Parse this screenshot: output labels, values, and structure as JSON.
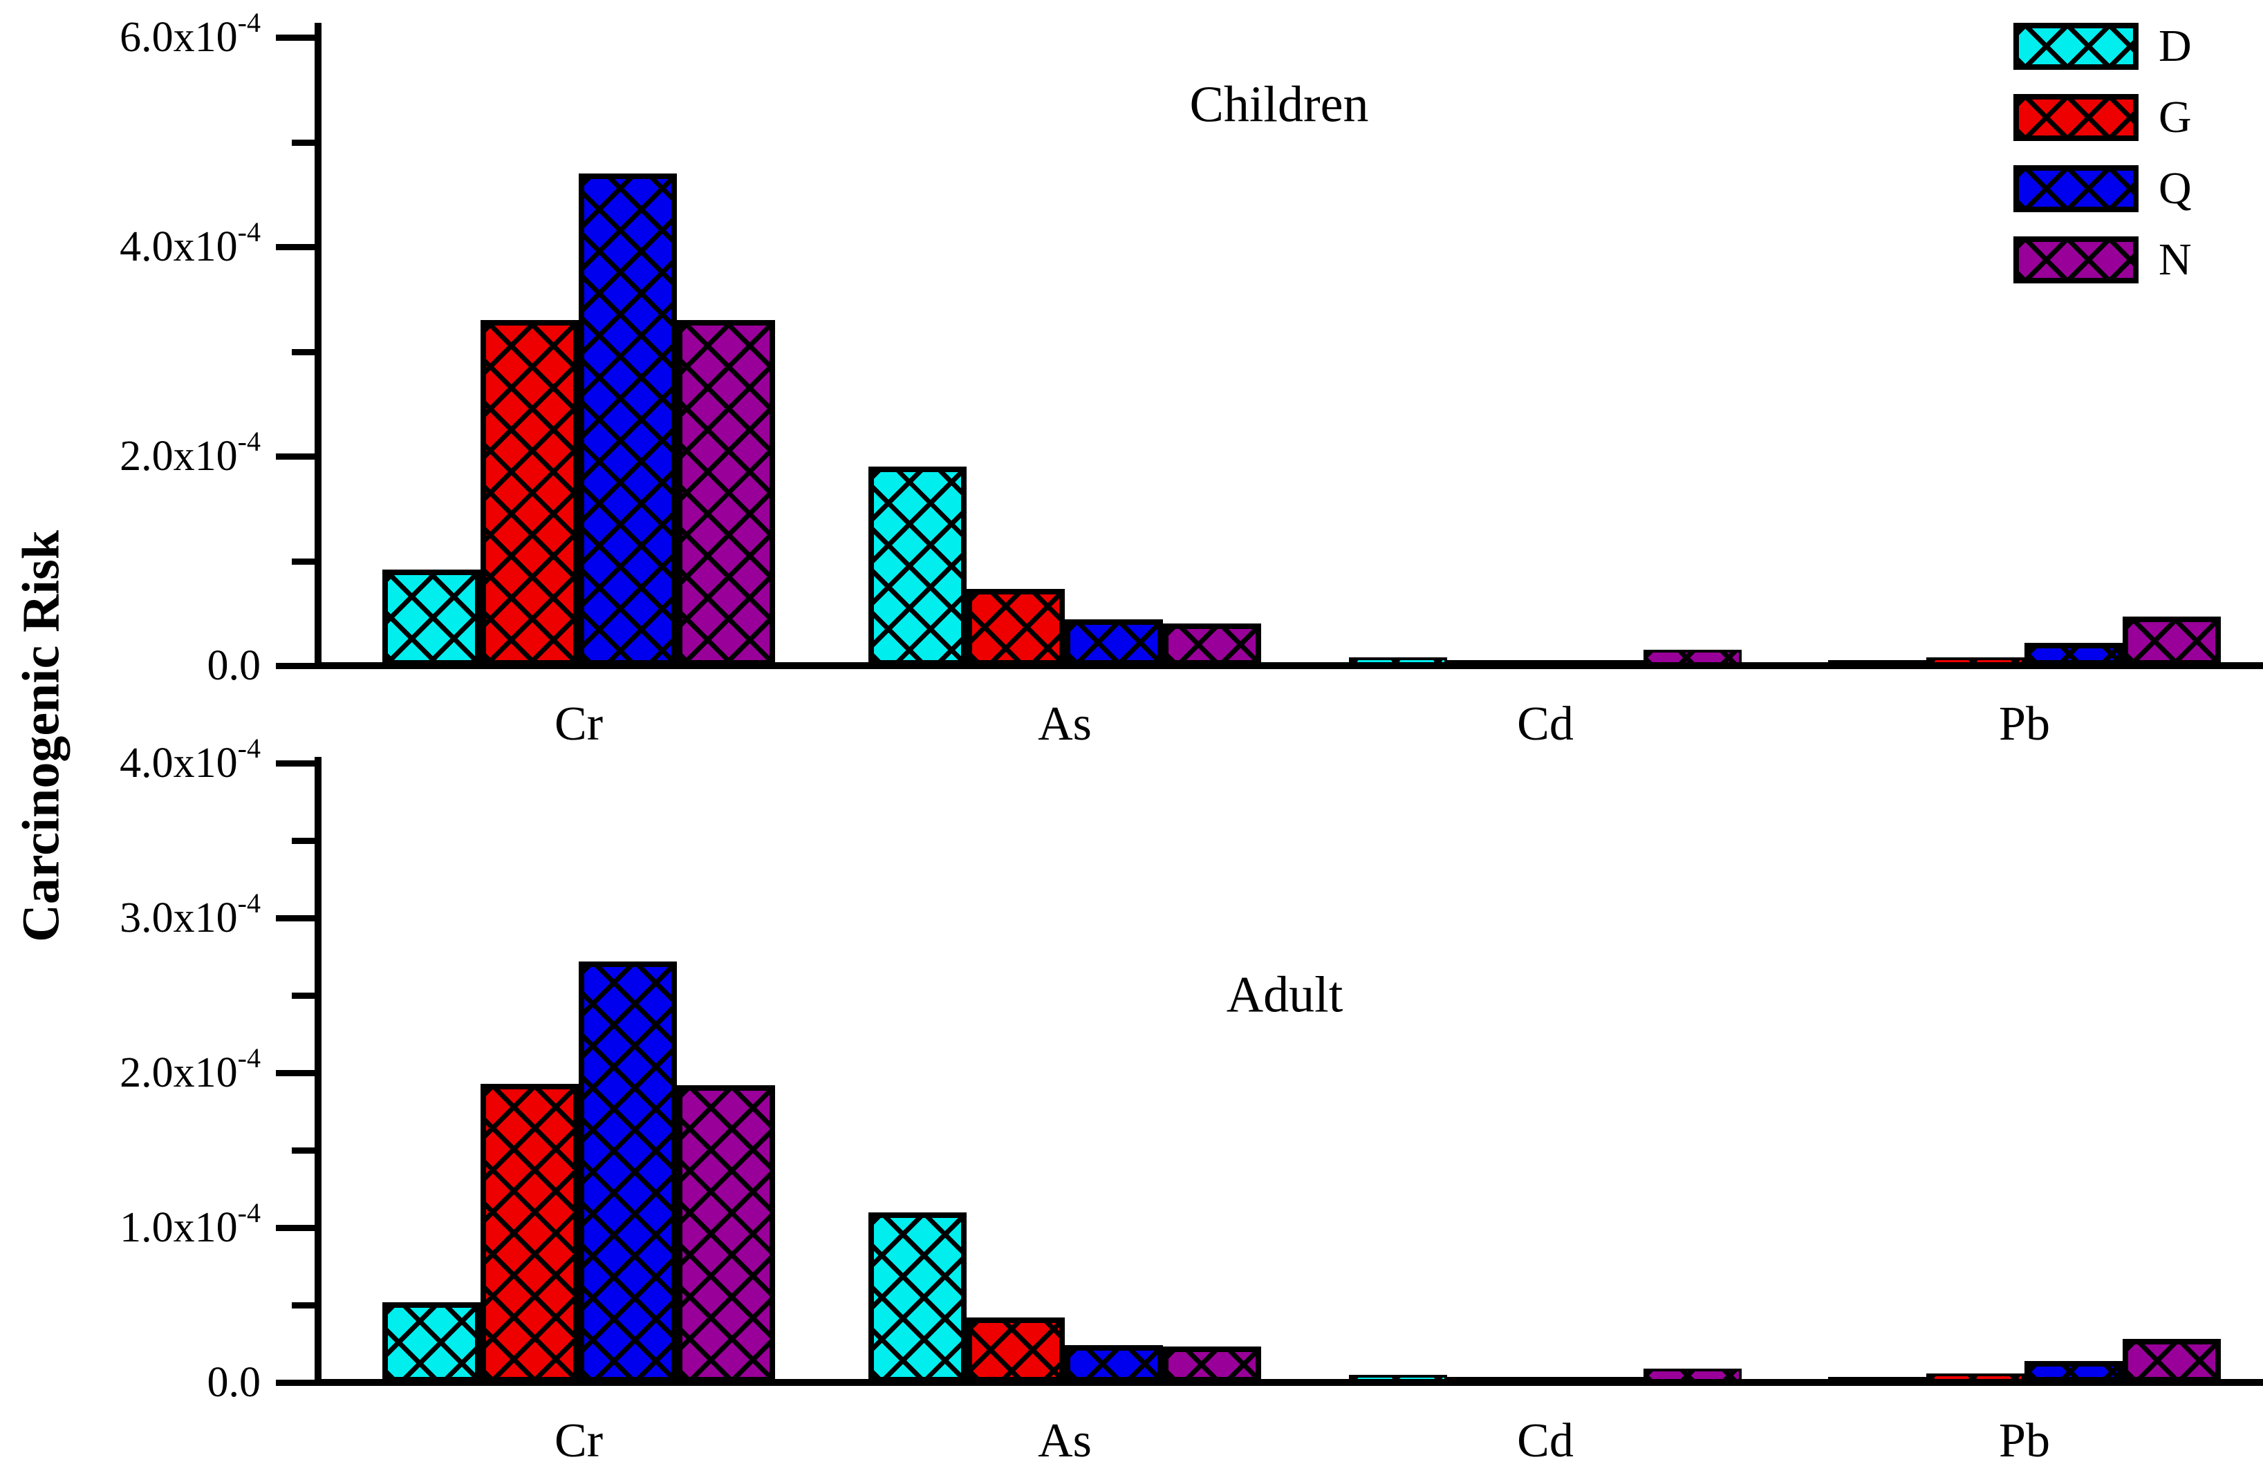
{
  "figure": {
    "background": "#ffffff"
  },
  "ylabel": "Carcinogenic Risk",
  "legend": {
    "position": "top-right",
    "items": [
      {
        "key": "D",
        "color": "#00EEEE"
      },
      {
        "key": "G",
        "color": "#EE0000"
      },
      {
        "key": "Q",
        "color": "#0000EE"
      },
      {
        "key": "N",
        "color": "#990099"
      }
    ]
  },
  "chart_data": [
    {
      "type": "bar",
      "title": "Children",
      "categories": [
        "Cr",
        "As",
        "Cd",
        "Pb"
      ],
      "series": [
        {
          "name": "D",
          "color": "#00EEEE",
          "values": [
            9.2e-05,
            0.00019,
            8e-06,
            2e-06
          ]
        },
        {
          "name": "G",
          "color": "#EE0000",
          "values": [
            0.00033,
            7.3e-05,
            3.5e-06,
            8e-06
          ]
        },
        {
          "name": "Q",
          "color": "#0000EE",
          "values": [
            0.00047,
            4.4e-05,
            4.5e-06,
            2.2e-05
          ]
        },
        {
          "name": "N",
          "color": "#990099",
          "values": [
            0.00033,
            4e-05,
            1.5e-05,
            4.7e-05
          ]
        }
      ],
      "ylim": [
        0,
        0.0006
      ],
      "grid": false,
      "yticks": [
        {
          "v": 0.0006,
          "text": "6.0x10",
          "sup": "-4"
        },
        {
          "v": 0.0004,
          "text": "4.0x10",
          "sup": "-4"
        },
        {
          "v": 0.0002,
          "text": "2.0x10",
          "sup": "-4"
        },
        {
          "v": 0,
          "text": "0.0",
          "sup": ""
        }
      ],
      "yminor": [
        0.0005,
        0.0003,
        0.0001
      ]
    },
    {
      "type": "bar",
      "title": "Adult",
      "categories": [
        "Cr",
        "As",
        "Cd",
        "Pb"
      ],
      "series": [
        {
          "name": "D",
          "color": "#00EEEE",
          "values": [
            5.2e-05,
            0.00011,
            5e-06,
            1.2e-06
          ]
        },
        {
          "name": "G",
          "color": "#EE0000",
          "values": [
            0.000193,
            4.2e-05,
            2.5e-06,
            6e-06
          ]
        },
        {
          "name": "Q",
          "color": "#0000EE",
          "values": [
            0.000272,
            2.4e-05,
            3e-06,
            1.4e-05
          ]
        },
        {
          "name": "N",
          "color": "#990099",
          "values": [
            0.000192,
            2.3e-05,
            9e-06,
            2.8e-05
          ]
        }
      ],
      "ylim": [
        0,
        0.0004
      ],
      "grid": false,
      "yticks": [
        {
          "v": 0.0004,
          "text": "4.0x10",
          "sup": "-4"
        },
        {
          "v": 0.0003,
          "text": "3.0x10",
          "sup": "-4"
        },
        {
          "v": 0.0002,
          "text": "2.0x10",
          "sup": "-4"
        },
        {
          "v": 0.0001,
          "text": "1.0x10",
          "sup": "-4"
        },
        {
          "v": 0,
          "text": "0.0",
          "sup": ""
        }
      ],
      "yminor": [
        0.00035,
        0.00025,
        0.00015,
        5e-05
      ]
    }
  ]
}
